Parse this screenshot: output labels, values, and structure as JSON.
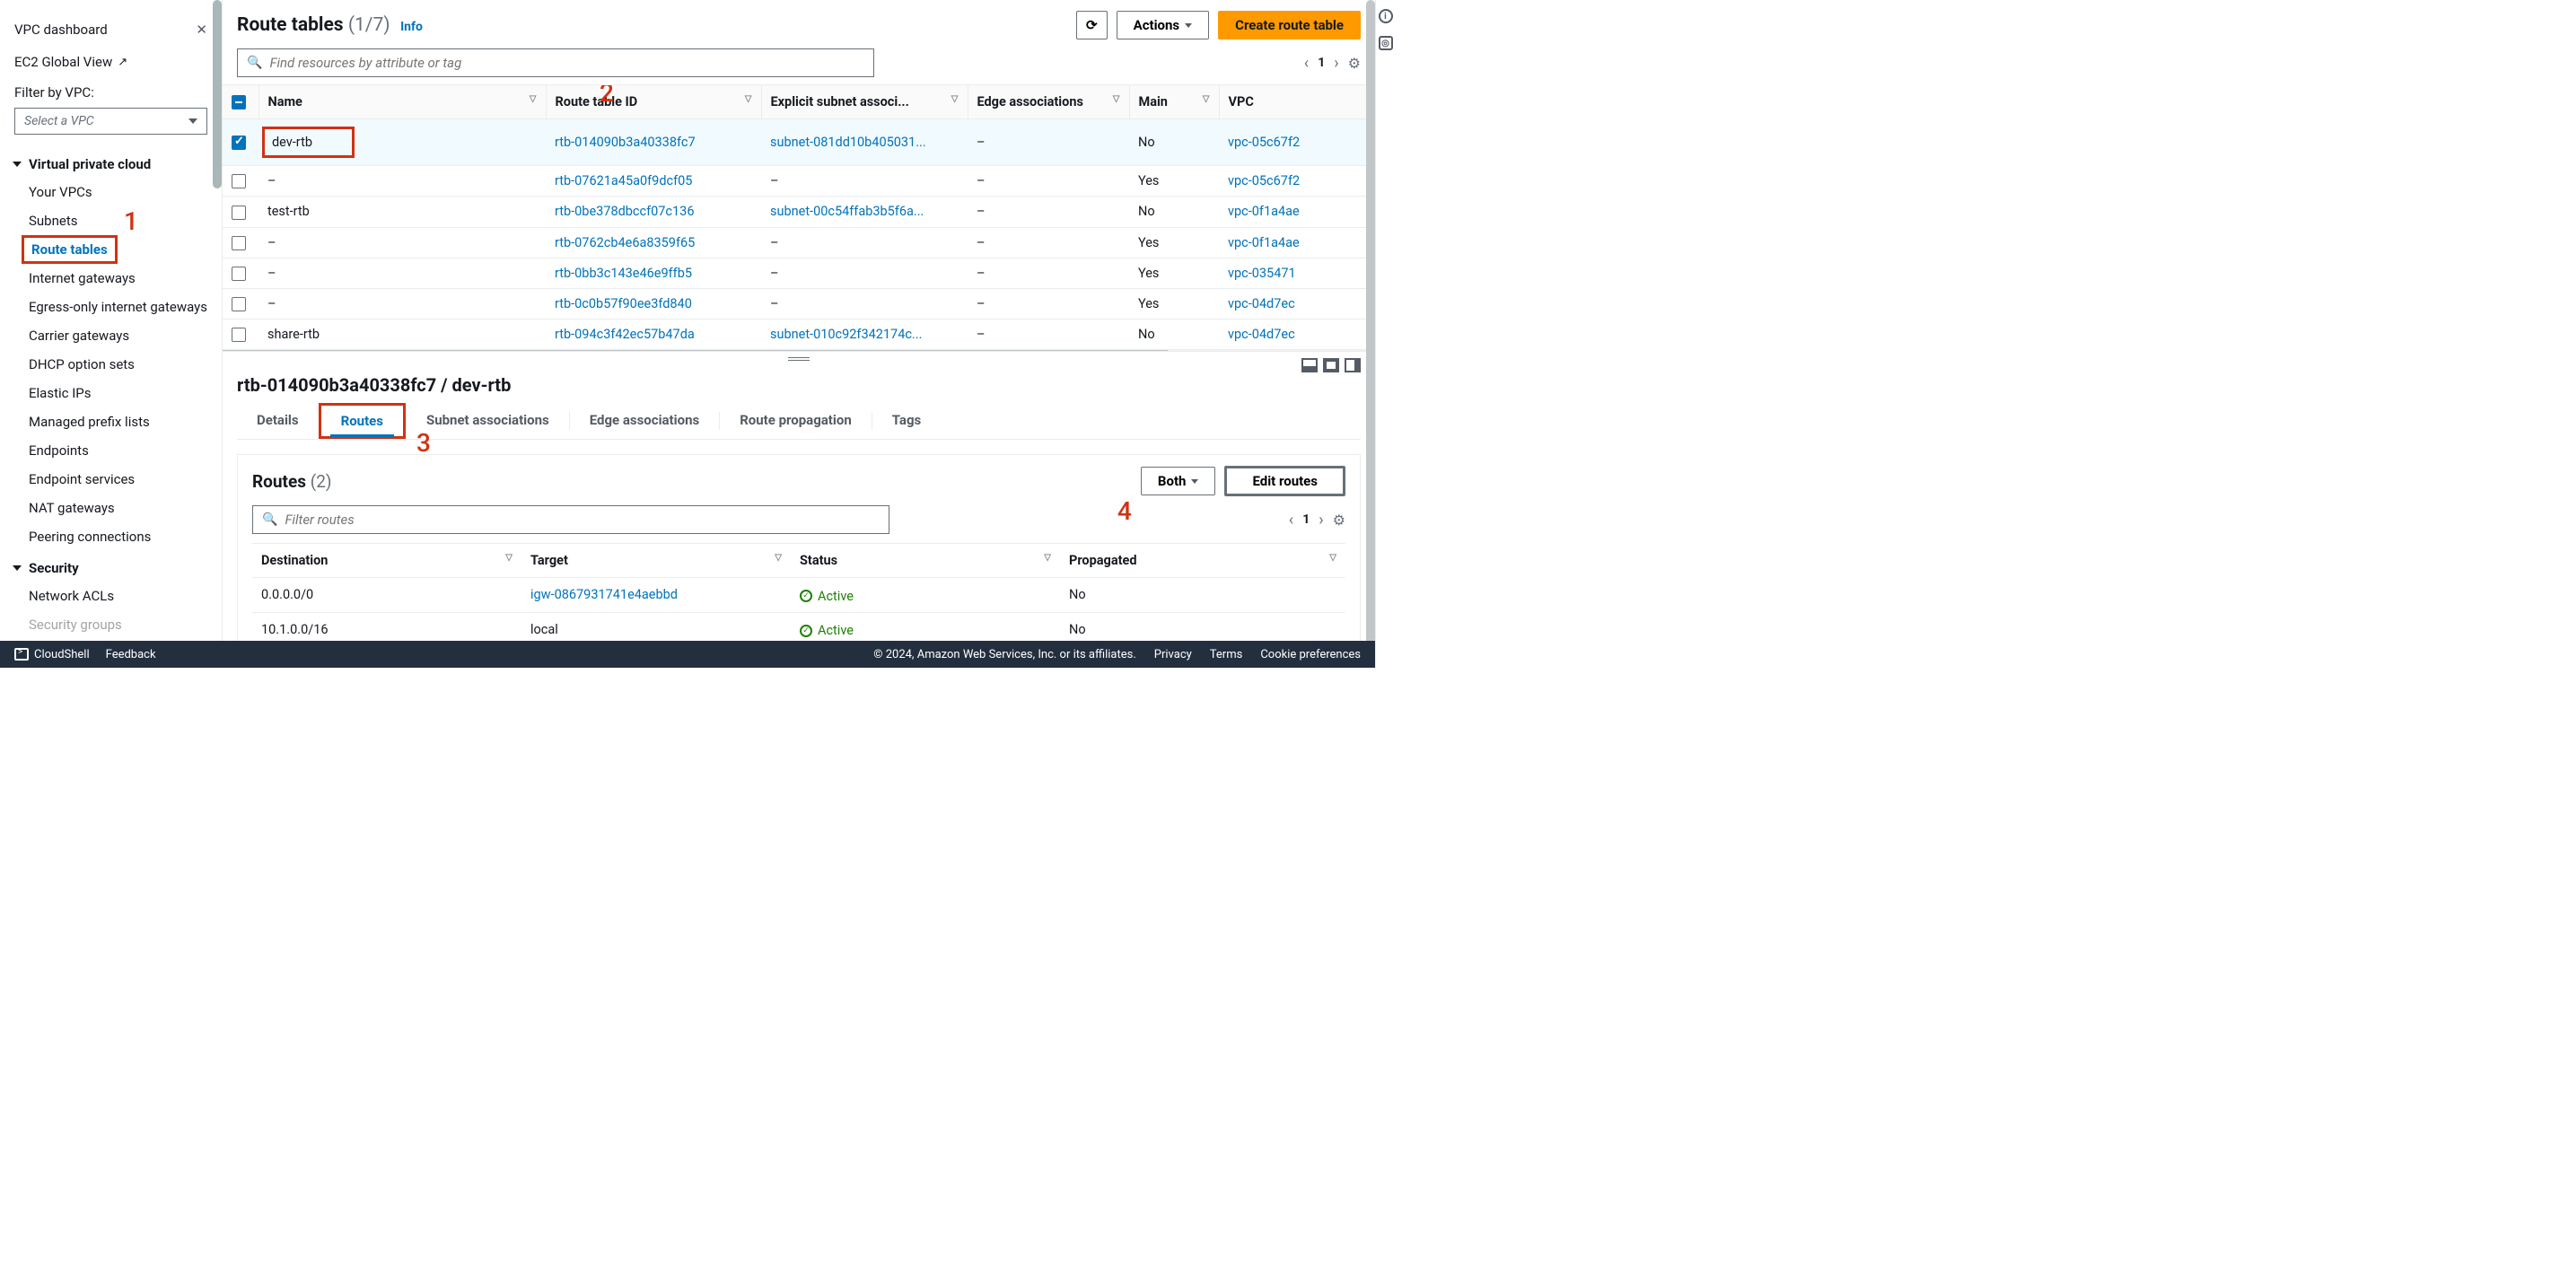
{
  "sidebar": {
    "dashboard": "VPC dashboard",
    "ec2": "EC2 Global View",
    "filter_label": "Filter by VPC:",
    "select_placeholder": "Select a VPC",
    "section_vpc": "Virtual private cloud",
    "links": {
      "your_vpcs": "Your VPCs",
      "subnets": "Subnets",
      "route_tables": "Route tables",
      "igw": "Internet gateways",
      "eigw": "Egress-only internet gateways",
      "carrier": "Carrier gateways",
      "dhcp": "DHCP option sets",
      "eips": "Elastic IPs",
      "mpl": "Managed prefix lists",
      "endpoints": "Endpoints",
      "endpoint_svc": "Endpoint services",
      "nat": "NAT gateways",
      "peering": "Peering connections"
    },
    "section_security": "Security",
    "security_links": {
      "nacl": "Network ACLs",
      "sg": "Security groups"
    }
  },
  "header": {
    "title": "Route tables",
    "count": "(1/7)",
    "info": "Info",
    "actions": "Actions",
    "create": "Create route table",
    "search_placeholder": "Find resources by attribute or tag",
    "page": "1"
  },
  "table": {
    "cols": {
      "name": "Name",
      "rtid": "Route table ID",
      "subnet": "Explicit subnet associ...",
      "edge": "Edge associations",
      "main": "Main",
      "vpc": "VPC"
    },
    "rows": [
      {
        "checked": true,
        "name": "dev-rtb",
        "rtid": "rtb-014090b3a40338fc7",
        "subnet": "subnet-081dd10b405031...",
        "edge": "–",
        "main": "No",
        "vpc": "vpc-05c67f2"
      },
      {
        "checked": false,
        "name": "–",
        "rtid": "rtb-07621a45a0f9dcf05",
        "subnet": "–",
        "edge": "–",
        "main": "Yes",
        "vpc": "vpc-05c67f2"
      },
      {
        "checked": false,
        "name": "test-rtb",
        "rtid": "rtb-0be378dbccf07c136",
        "subnet": "subnet-00c54ffab3b5f6a...",
        "edge": "–",
        "main": "No",
        "vpc": "vpc-0f1a4ae"
      },
      {
        "checked": false,
        "name": "–",
        "rtid": "rtb-0762cb4e6a8359f65",
        "subnet": "–",
        "edge": "–",
        "main": "Yes",
        "vpc": "vpc-0f1a4ae"
      },
      {
        "checked": false,
        "name": "–",
        "rtid": "rtb-0bb3c143e46e9ffb5",
        "subnet": "–",
        "edge": "–",
        "main": "Yes",
        "vpc": "vpc-035471"
      },
      {
        "checked": false,
        "name": "–",
        "rtid": "rtb-0c0b57f90ee3fd840",
        "subnet": "–",
        "edge": "–",
        "main": "Yes",
        "vpc": "vpc-04d7ec"
      },
      {
        "checked": false,
        "name": "share-rtb",
        "rtid": "rtb-094c3f42ec57b47da",
        "subnet": "subnet-010c92f342174c...",
        "edge": "–",
        "main": "No",
        "vpc": "vpc-04d7ec"
      }
    ]
  },
  "detail": {
    "title": "rtb-014090b3a40338fc7 / dev-rtb",
    "tabs": {
      "details": "Details",
      "routes": "Routes",
      "subnet": "Subnet associations",
      "edge": "Edge associations",
      "prop": "Route propagation",
      "tags": "Tags"
    },
    "routes_title": "Routes",
    "routes_count": "(2)",
    "both": "Both",
    "edit": "Edit routes",
    "filter_placeholder": "Filter routes",
    "page": "1",
    "cols": {
      "dest": "Destination",
      "target": "Target",
      "status": "Status",
      "prop": "Propagated"
    },
    "rows": [
      {
        "dest": "0.0.0.0/0",
        "target": "igw-0867931741e4aebbd",
        "target_link": true,
        "status": "Active",
        "prop": "No"
      },
      {
        "dest": "10.1.0.0/16",
        "target": "local",
        "target_link": false,
        "status": "Active",
        "prop": "No"
      }
    ]
  },
  "footer": {
    "cloudshell": "CloudShell",
    "feedback": "Feedback",
    "copyright": "© 2024, Amazon Web Services, Inc. or its affiliates.",
    "privacy": "Privacy",
    "terms": "Terms",
    "cookies": "Cookie preferences"
  },
  "callouts": {
    "1": "1",
    "2": "2",
    "3": "3",
    "4": "4"
  },
  "colors": {
    "red": "#d13212",
    "orange": "#ff9900",
    "link": "#0073bb",
    "green": "#1d8102"
  }
}
